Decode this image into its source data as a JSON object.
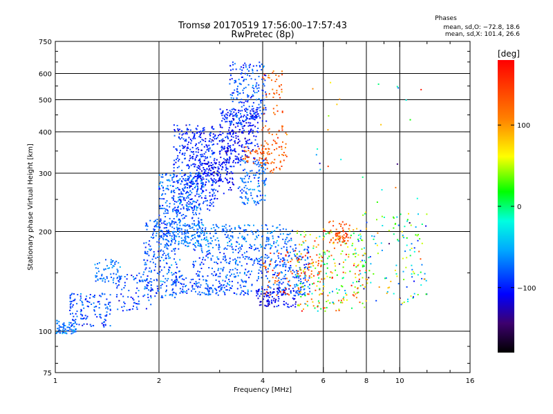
{
  "chart_data": {
    "type": "scatter",
    "title": "Tromsø 20170519 17:56:00–17:57:43",
    "subtitle": "RwPretec (8p)",
    "xlabel": "Frequency [MHz]",
    "ylabel": "Stationary phase Virtual Height [km]",
    "x_scale": "log",
    "y_scale": "log",
    "xlim": [
      1,
      16
    ],
    "ylim": [
      75,
      750
    ],
    "x_ticks": [
      {
        "value": 1,
        "label": "1"
      },
      {
        "value": 2,
        "label": "2"
      },
      {
        "value": 4,
        "label": "4"
      },
      {
        "value": 6,
        "label": "6"
      },
      {
        "value": 8,
        "label": "8"
      },
      {
        "value": 10,
        "label": "10"
      },
      {
        "value": 16,
        "label": "16"
      }
    ],
    "y_ticks": [
      {
        "value": 75,
        "label": "75"
      },
      {
        "value": 100,
        "label": "100"
      },
      {
        "value": 200,
        "label": "200"
      },
      {
        "value": 300,
        "label": "300"
      },
      {
        "value": 400,
        "label": "400"
      },
      {
        "value": 500,
        "label": "500"
      },
      {
        "value": 600,
        "label": "600"
      },
      {
        "value": 750,
        "label": "750"
      }
    ],
    "x_grid": [
      2,
      4,
      6,
      8,
      10
    ],
    "y_grid": [
      100,
      200,
      300,
      400,
      500,
      600
    ],
    "legend": {
      "title": "Phases",
      "lines": [
        "mean, sd,O: −72.8, 18.6",
        "mean, sd,X: 101.4, 26.6"
      ]
    },
    "colorbar": {
      "label": "[deg]",
      "range": [
        -180,
        180
      ],
      "ticks": [
        {
          "value": 100,
          "label": "100"
        },
        {
          "value": 0,
          "label": "0"
        },
        {
          "value": -100,
          "label": "−100"
        }
      ]
    },
    "clusters": [
      {
        "fMin": 1.0,
        "fMax": 1.15,
        "hMin": 98,
        "hMax": 108,
        "phaseMean": -75,
        "phaseSd": 18,
        "count": 70
      },
      {
        "fMin": 1.1,
        "fMax": 1.45,
        "hMin": 103,
        "hMax": 130,
        "phaseMean": -85,
        "phaseSd": 20,
        "count": 130
      },
      {
        "fMin": 1.3,
        "fMax": 1.55,
        "hMin": 140,
        "hMax": 165,
        "phaseMean": -70,
        "phaseSd": 15,
        "count": 60
      },
      {
        "fMin": 1.5,
        "fMax": 1.9,
        "hMin": 115,
        "hMax": 150,
        "phaseMean": -90,
        "phaseSd": 20,
        "count": 80
      },
      {
        "fMin": 1.8,
        "fMax": 2.3,
        "hMin": 125,
        "hMax": 220,
        "phaseMean": -80,
        "phaseSd": 20,
        "count": 260
      },
      {
        "fMin": 2.0,
        "fMax": 2.7,
        "hMin": 180,
        "hMax": 300,
        "phaseMean": -75,
        "phaseSd": 20,
        "count": 350
      },
      {
        "fMin": 2.2,
        "fMax": 2.9,
        "hMin": 230,
        "hMax": 420,
        "phaseMean": -95,
        "phaseSd": 18,
        "count": 300
      },
      {
        "fMin": 2.4,
        "fMax": 3.3,
        "hMin": 250,
        "hMax": 400,
        "phaseMean": -100,
        "phaseSd": 18,
        "count": 160
      },
      {
        "fMin": 2.6,
        "fMax": 3.3,
        "hMin": 280,
        "hMax": 330,
        "phaseMean": -110,
        "phaseSd": 15,
        "count": 90
      },
      {
        "fMin": 3.0,
        "fMax": 3.9,
        "hMin": 320,
        "hMax": 470,
        "phaseMean": -105,
        "phaseSd": 18,
        "count": 260
      },
      {
        "fMin": 3.2,
        "fMax": 4.1,
        "hMin": 420,
        "hMax": 650,
        "phaseMean": -85,
        "phaseSd": 22,
        "count": 200
      },
      {
        "fMin": 3.4,
        "fMax": 4.1,
        "hMin": 240,
        "hMax": 330,
        "phaseMean": -75,
        "phaseSd": 18,
        "count": 120
      },
      {
        "fMin": 3.5,
        "fMax": 4.2,
        "hMin": 320,
        "hMax": 360,
        "phaseMean": 135,
        "phaseSd": 18,
        "count": 45
      },
      {
        "fMin": 3.9,
        "fMax": 4.7,
        "hMin": 300,
        "hMax": 420,
        "phaseMean": 130,
        "phaseSd": 22,
        "count": 70
      },
      {
        "fMin": 4.0,
        "fMax": 4.6,
        "hMin": 450,
        "hMax": 620,
        "phaseMean": 125,
        "phaseSd": 30,
        "count": 40
      },
      {
        "fMin": 2.3,
        "fMax": 5.0,
        "hMin": 180,
        "hMax": 210,
        "phaseMean": -70,
        "phaseSd": 18,
        "count": 240
      },
      {
        "fMin": 2.5,
        "fMax": 5.5,
        "hMin": 150,
        "hMax": 180,
        "phaseMean": -80,
        "phaseSd": 20,
        "count": 260
      },
      {
        "fMin": 2.2,
        "fMax": 5.5,
        "hMin": 128,
        "hMax": 150,
        "phaseMean": -82,
        "phaseSd": 20,
        "count": 300
      },
      {
        "fMin": 3.8,
        "fMax": 5.0,
        "hMin": 118,
        "hMax": 135,
        "phaseMean": -110,
        "phaseSd": 18,
        "count": 100
      },
      {
        "fMin": 4.0,
        "fMax": 6.0,
        "hMin": 128,
        "hMax": 175,
        "phaseMean": 140,
        "phaseSd": 25,
        "count": 90
      },
      {
        "fMin": 5.0,
        "fMax": 8.0,
        "hMin": 115,
        "hMax": 205,
        "phaseMean": 50,
        "phaseSd": 90,
        "count": 260
      },
      {
        "fMin": 6.2,
        "fMax": 7.2,
        "hMin": 185,
        "hMax": 215,
        "phaseMean": 135,
        "phaseSd": 25,
        "count": 60
      },
      {
        "fMin": 7.5,
        "fMax": 12.0,
        "hMin": 120,
        "hMax": 230,
        "phaseMean": 0,
        "phaseSd": 100,
        "count": 140
      },
      {
        "fMin": 5.5,
        "fMax": 12.0,
        "hMin": 230,
        "hMax": 650,
        "phaseMean": 20,
        "phaseSd": 100,
        "count": 25
      }
    ]
  }
}
